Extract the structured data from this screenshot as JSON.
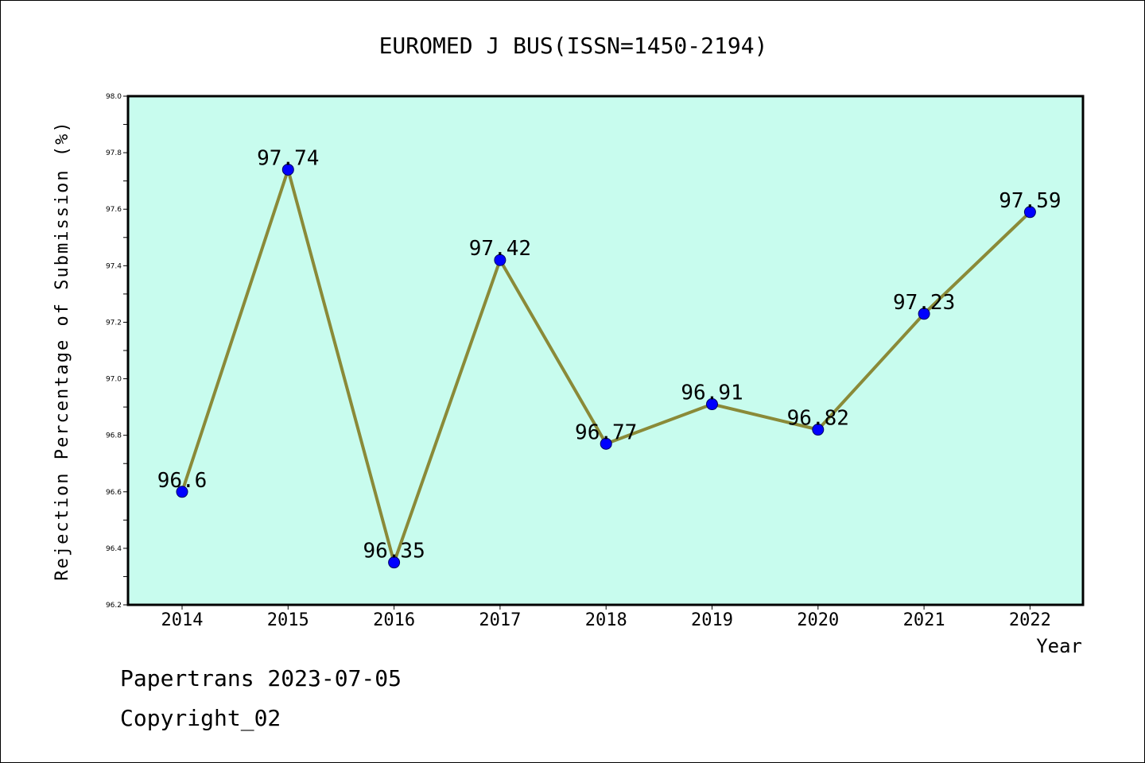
{
  "colors": {
    "plot_background": "#c8fcee",
    "line": "#8a8a38",
    "marker": "#0000ff",
    "axis": "#000000"
  },
  "chart_data": {
    "type": "line",
    "title": "EUROMED J BUS(ISSN=1450-2194)",
    "xlabel": "Year",
    "ylabel": "Rejection Percentage of Submission (%)",
    "categories": [
      "2014",
      "2015",
      "2016",
      "2017",
      "2018",
      "2019",
      "2020",
      "2021",
      "2022"
    ],
    "series": [
      {
        "values": [
          96.6,
          97.74,
          96.35,
          97.42,
          96.77,
          96.91,
          96.82,
          97.23,
          97.59
        ]
      }
    ],
    "data_labels": [
      "96.6",
      "97.74",
      "96.35",
      "97.42",
      "96.77",
      "96.91",
      "96.82",
      "97.23",
      "97.59"
    ],
    "ylim": [
      96.2,
      98.0
    ],
    "yticks": [
      "96.2",
      "96.4",
      "96.6",
      "96.8",
      "97.0",
      "97.2",
      "97.4",
      "97.6",
      "97.8",
      "98.0"
    ],
    "grid": false,
    "legend": "none"
  },
  "footer": {
    "line1": "Papertrans 2023-07-05",
    "line2": "Copyright_02"
  }
}
